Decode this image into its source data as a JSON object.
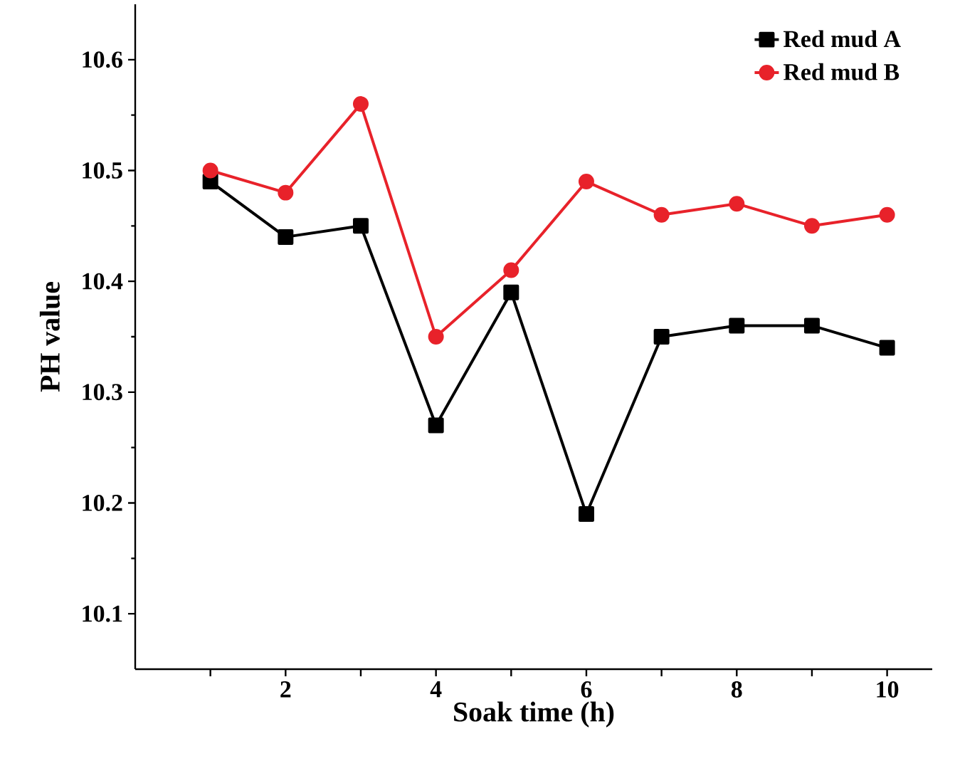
{
  "chart_data": {
    "type": "line",
    "xlabel": "Soak time (h)",
    "ylabel": "PH value",
    "x": [
      1,
      2,
      3,
      4,
      5,
      6,
      7,
      8,
      9,
      10
    ],
    "series": [
      {
        "name": "Red mud A",
        "color": "#000000",
        "marker": "square",
        "values": [
          10.49,
          10.44,
          10.45,
          10.27,
          10.39,
          10.19,
          10.35,
          10.36,
          10.36,
          10.34
        ]
      },
      {
        "name": "Red mud B",
        "color": "#e8222a",
        "marker": "circle",
        "values": [
          10.5,
          10.48,
          10.56,
          10.35,
          10.41,
          10.49,
          10.46,
          10.47,
          10.45,
          10.46
        ]
      }
    ],
    "xlim": [
      0,
      10.6
    ],
    "ylim": [
      10.05,
      10.65
    ],
    "xticks": [
      {
        "value": 1,
        "label": null
      },
      2,
      {
        "value": 3,
        "label": null
      },
      4,
      {
        "value": 5,
        "label": null
      },
      6,
      {
        "value": 7,
        "label": null
      },
      8,
      {
        "value": 9,
        "label": null
      },
      10
    ],
    "yticks": [
      10.1,
      10.2,
      10.3,
      10.4,
      10.5,
      10.6
    ],
    "legend": "top right",
    "grid": false,
    "line_style": "solid"
  }
}
